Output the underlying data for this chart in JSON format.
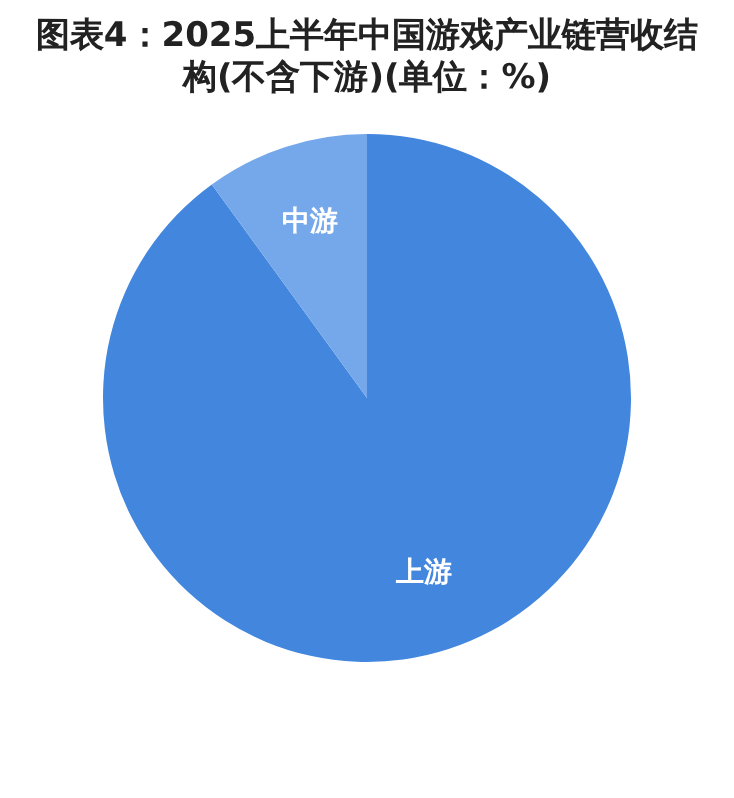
{
  "chart_data": {
    "type": "pie",
    "title": "图表4：2025上半年中国游戏产业链营收结构(不含下游)(单位：%)",
    "categories": [
      "上游",
      "中游"
    ],
    "values": [
      90,
      10
    ],
    "colors": [
      "#4286de",
      "#75a8ea"
    ],
    "legend": false
  }
}
